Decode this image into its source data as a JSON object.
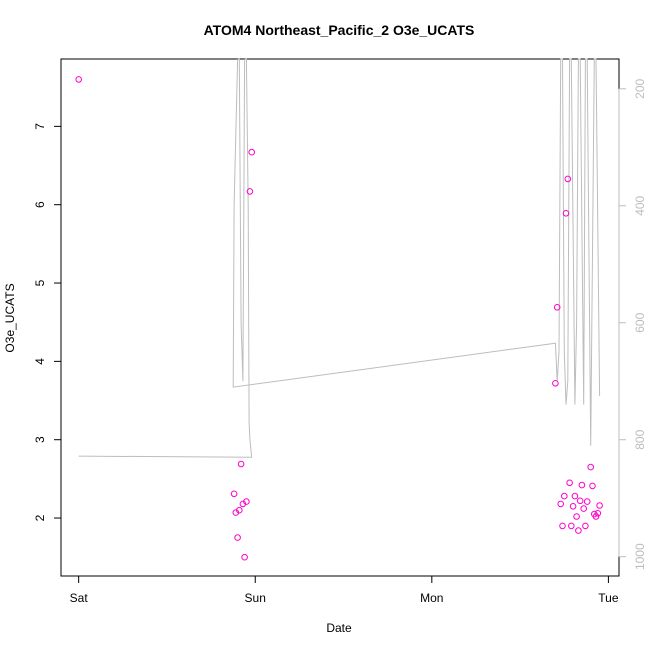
{
  "chart_data": {
    "type": "scatter",
    "title": "ATOM4 Northeast_Pacific_2 O3e_UCATS",
    "xlabel": "Date",
    "ylabel": "O3e_UCATS",
    "x_ticks": [
      {
        "label": "Sat",
        "value": 0
      },
      {
        "label": "Sun",
        "value": 1
      },
      {
        "label": "Mon",
        "value": 2
      },
      {
        "label": "Tue",
        "value": 3
      }
    ],
    "xlim": [
      -0.1,
      3.06
    ],
    "ylim": [
      1.26,
      7.86
    ],
    "y_ticks": [
      2,
      3,
      4,
      5,
      6,
      7
    ],
    "y2_ticks": [
      200,
      400,
      600,
      800,
      1000
    ],
    "y2lim": [
      1033,
      149
    ],
    "y2_reversed": true,
    "grid": false,
    "colors": {
      "points": "#ff00cc",
      "profile_line": "#bdbdbd",
      "axis": "#000000",
      "y2_axis": "#bdbdbd"
    },
    "series": [
      {
        "values": [
          [
            0.0,
            7.6
          ],
          [
            0.88,
            2.31
          ],
          [
            0.89,
            2.07
          ],
          [
            0.9,
            1.75
          ],
          [
            0.91,
            2.1
          ],
          [
            0.92,
            2.69
          ],
          [
            0.93,
            2.18
          ],
          [
            0.94,
            1.5
          ],
          [
            0.95,
            2.21
          ],
          [
            0.97,
            6.17
          ],
          [
            0.98,
            6.67
          ],
          [
            2.7,
            3.72
          ],
          [
            2.71,
            4.69
          ],
          [
            2.73,
            2.18
          ],
          [
            2.74,
            1.9
          ],
          [
            2.75,
            2.28
          ],
          [
            2.76,
            5.89
          ],
          [
            2.77,
            6.33
          ],
          [
            2.78,
            2.45
          ],
          [
            2.79,
            1.9
          ],
          [
            2.8,
            2.15
          ],
          [
            2.81,
            2.28
          ],
          [
            2.82,
            2.02
          ],
          [
            2.83,
            1.84
          ],
          [
            2.84,
            2.22
          ],
          [
            2.85,
            2.42
          ],
          [
            2.86,
            2.12
          ],
          [
            2.87,
            1.9
          ],
          [
            2.88,
            2.21
          ],
          [
            2.9,
            2.65
          ],
          [
            2.91,
            2.41
          ],
          [
            2.92,
            2.05
          ],
          [
            2.93,
            2.02
          ],
          [
            2.94,
            2.06
          ],
          [
            2.95,
            2.16
          ]
        ]
      },
      {
        "axis": "right",
        "values": [
          [
            0.0,
            828
          ],
          [
            0.98,
            830
          ],
          [
            0.97,
            800
          ],
          [
            0.965,
            770
          ],
          [
            0.96,
            400
          ],
          [
            0.95,
            149
          ],
          [
            0.94,
            150
          ],
          [
            0.93,
            700
          ],
          [
            0.92,
            600
          ],
          [
            0.91,
            149
          ],
          [
            0.9,
            150
          ],
          [
            0.88,
            400
          ],
          [
            0.875,
            710
          ],
          [
            0.875,
            710
          ],
          [
            2.7,
            635
          ],
          [
            2.71,
            700
          ],
          [
            2.72,
            650
          ],
          [
            2.73,
            149
          ],
          [
            2.74,
            149
          ],
          [
            2.75,
            650
          ],
          [
            2.76,
            740
          ],
          [
            2.77,
            700
          ],
          [
            2.78,
            149
          ],
          [
            2.79,
            149
          ],
          [
            2.81,
            740
          ],
          [
            2.82,
            600
          ],
          [
            2.83,
            149
          ],
          [
            2.84,
            149
          ],
          [
            2.86,
            740
          ],
          [
            2.87,
            149
          ],
          [
            2.88,
            149
          ],
          [
            2.9,
            810
          ],
          [
            2.92,
            149
          ],
          [
            2.93,
            149
          ],
          [
            2.95,
            725
          ]
        ]
      }
    ]
  }
}
